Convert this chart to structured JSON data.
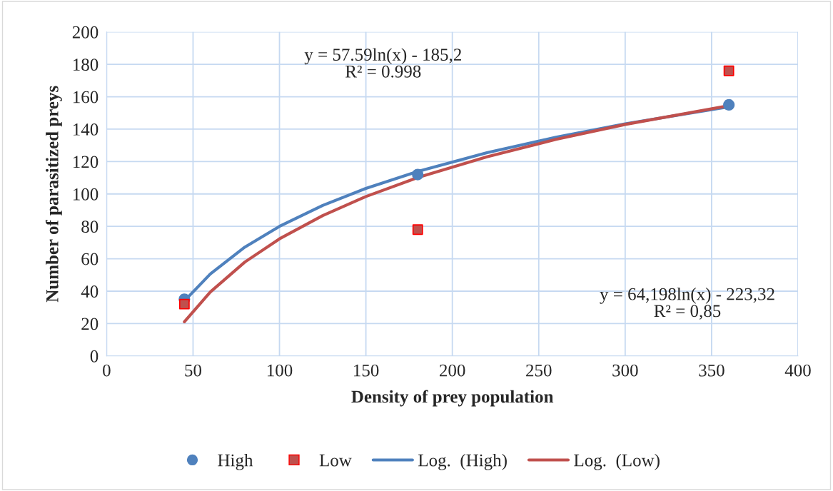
{
  "chart_data": {
    "type": "scatter",
    "xlabel": "Density of prey population",
    "ylabel": "Number of parasitized preys",
    "xlim": [
      0,
      400
    ],
    "xticks": [
      0,
      50,
      100,
      150,
      200,
      250,
      300,
      350,
      400
    ],
    "ylim": [
      0,
      200
    ],
    "yticks": [
      0,
      20,
      40,
      60,
      80,
      100,
      120,
      140,
      160,
      180,
      200
    ],
    "grid": true,
    "legend": "bottom",
    "series": [
      {
        "name": "High",
        "marker": "circle",
        "color": "#4f81bd",
        "x": [
          45,
          180,
          360
        ],
        "values": [
          35,
          112,
          155
        ]
      },
      {
        "name": "Low",
        "marker": "square",
        "color": "#c0504d",
        "x": [
          45,
          180,
          360
        ],
        "values": [
          32,
          78,
          176
        ]
      },
      {
        "name": "Log.  (High)",
        "type": "line",
        "marker": "none",
        "color": "#4f81bd",
        "x": [
          45,
          60,
          80,
          100,
          125,
          150,
          180,
          220,
          260,
          300,
          360
        ],
        "values": [
          34.0,
          50.6,
          67.2,
          80.0,
          92.9,
          103.4,
          113.9,
          125.4,
          135.0,
          143.3,
          153.8
        ]
      },
      {
        "name": "Log.  (Low)",
        "type": "line",
        "marker": "none",
        "color": "#c0504d",
        "x": [
          45,
          60,
          80,
          100,
          125,
          150,
          180,
          220,
          260,
          300,
          360
        ],
        "values": [
          21.1,
          39.5,
          58.0,
          72.3,
          86.6,
          98.4,
          110.1,
          122.9,
          133.7,
          142.9,
          154.5
        ]
      }
    ],
    "annotations": [
      "y = 57.59ln(x) - 185,2\nR² = 0.998",
      "y = 64,198ln(x) - 223,32\nR² = 0,85"
    ]
  }
}
